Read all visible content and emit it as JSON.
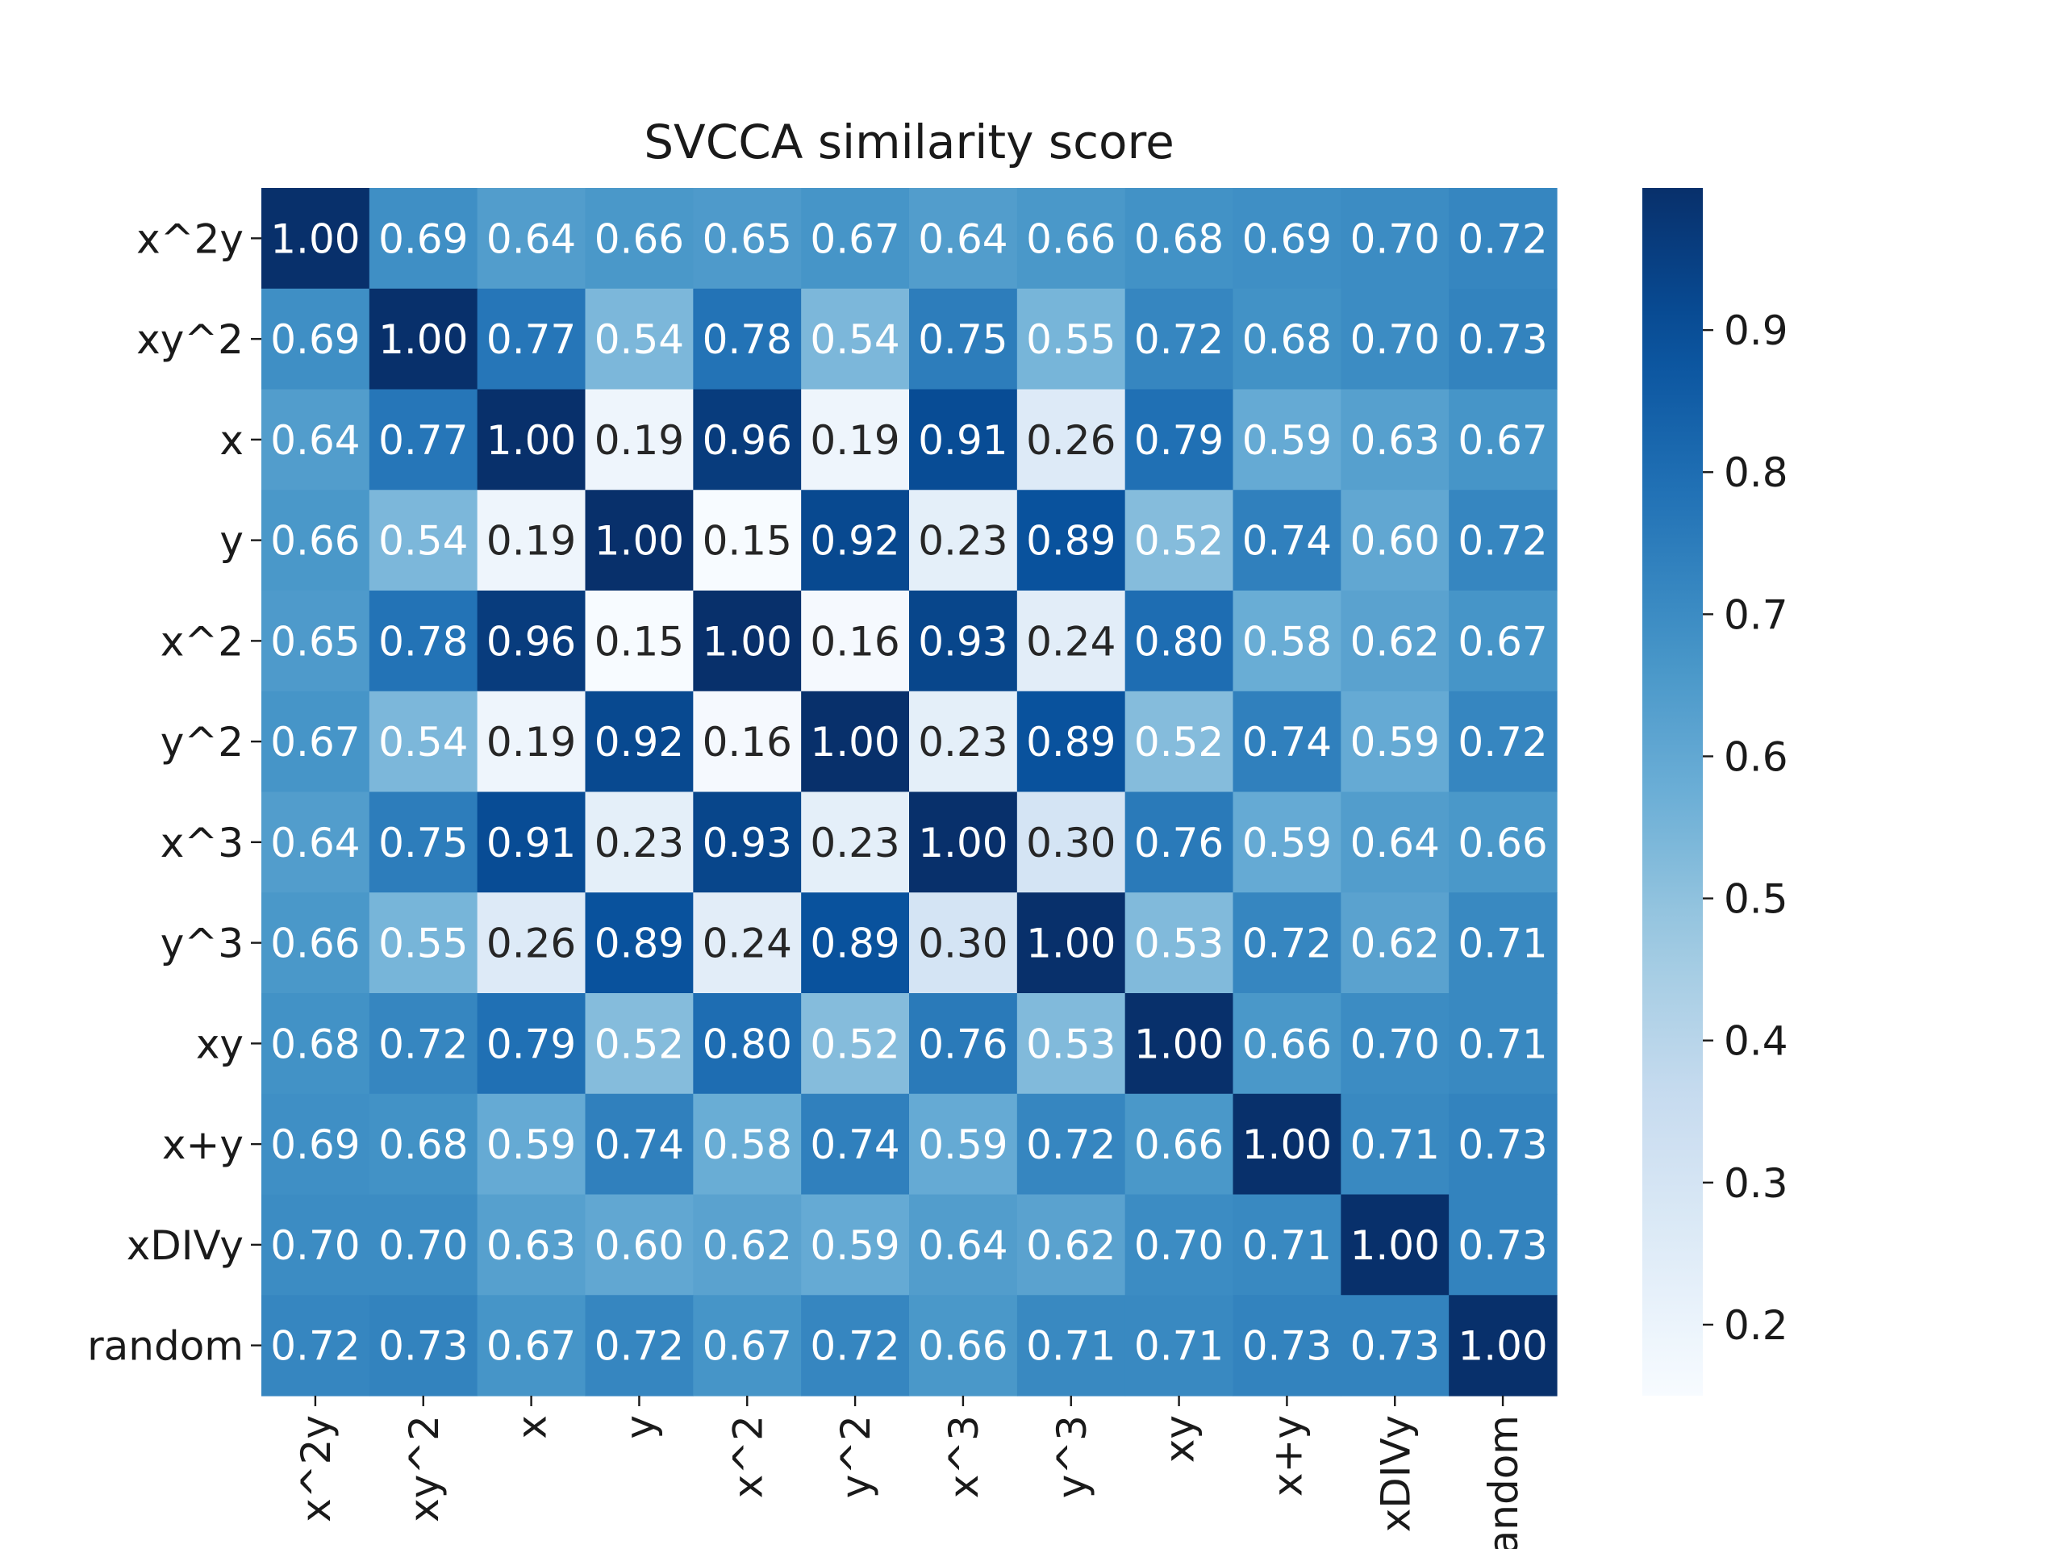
{
  "chart_data": {
    "type": "heatmap",
    "title": "SVCCA similarity score",
    "xlabel": "",
    "ylabel": "",
    "row_labels": [
      "x^2y",
      "xy^2",
      "x",
      "y",
      "x^2",
      "y^2",
      "x^3",
      "y^3",
      "xy",
      "x+y",
      "xDIVy",
      "random"
    ],
    "col_labels": [
      "x^2y",
      "xy^2",
      "x",
      "y",
      "x^2",
      "y^2",
      "x^3",
      "y^3",
      "xy",
      "x+y",
      "xDIVy",
      "random"
    ],
    "values": [
      [
        1.0,
        0.69,
        0.64,
        0.66,
        0.65,
        0.67,
        0.64,
        0.66,
        0.68,
        0.69,
        0.7,
        0.72
      ],
      [
        0.69,
        1.0,
        0.77,
        0.54,
        0.78,
        0.54,
        0.75,
        0.55,
        0.72,
        0.68,
        0.7,
        0.73
      ],
      [
        0.64,
        0.77,
        1.0,
        0.19,
        0.96,
        0.19,
        0.91,
        0.26,
        0.79,
        0.59,
        0.63,
        0.67
      ],
      [
        0.66,
        0.54,
        0.19,
        1.0,
        0.15,
        0.92,
        0.23,
        0.89,
        0.52,
        0.74,
        0.6,
        0.72
      ],
      [
        0.65,
        0.78,
        0.96,
        0.15,
        1.0,
        0.16,
        0.93,
        0.24,
        0.8,
        0.58,
        0.62,
        0.67
      ],
      [
        0.67,
        0.54,
        0.19,
        0.92,
        0.16,
        1.0,
        0.23,
        0.89,
        0.52,
        0.74,
        0.59,
        0.72
      ],
      [
        0.64,
        0.75,
        0.91,
        0.23,
        0.93,
        0.23,
        1.0,
        0.3,
        0.76,
        0.59,
        0.64,
        0.66
      ],
      [
        0.66,
        0.55,
        0.26,
        0.89,
        0.24,
        0.89,
        0.3,
        1.0,
        0.53,
        0.72,
        0.62,
        0.71
      ],
      [
        0.68,
        0.72,
        0.79,
        0.52,
        0.8,
        0.52,
        0.76,
        0.53,
        1.0,
        0.66,
        0.7,
        0.71
      ],
      [
        0.69,
        0.68,
        0.59,
        0.74,
        0.58,
        0.74,
        0.59,
        0.72,
        0.66,
        1.0,
        0.71,
        0.73
      ],
      [
        0.7,
        0.7,
        0.63,
        0.6,
        0.62,
        0.59,
        0.64,
        0.62,
        0.7,
        0.71,
        1.0,
        0.73
      ],
      [
        0.72,
        0.73,
        0.67,
        0.72,
        0.67,
        0.72,
        0.66,
        0.71,
        0.71,
        0.73,
        0.73,
        1.0
      ]
    ],
    "value_format": "2 decimals",
    "colormap": "Blues",
    "color_range": [
      0.15,
      1.0
    ],
    "colorbar": {
      "ticks": [
        0.2,
        0.3,
        0.4,
        0.5,
        0.6,
        0.7,
        0.8,
        0.9
      ],
      "tick_labels": [
        "0.2",
        "0.3",
        "0.4",
        "0.5",
        "0.6",
        "0.7",
        "0.8",
        "0.9"
      ],
      "placement": "right"
    },
    "grid": false
  }
}
